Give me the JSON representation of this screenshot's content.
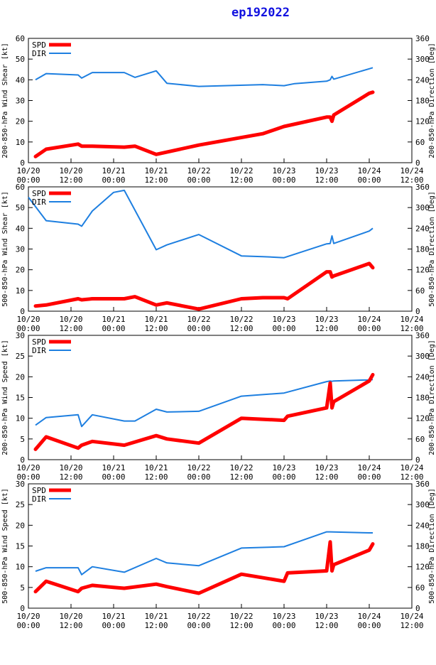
{
  "title": "ep192022",
  "colors": {
    "spd": "#ff0000",
    "dir": "#1e7fe0",
    "axis": "#000000",
    "title": "#1010e0"
  },
  "chart_data": [
    {
      "type": "line",
      "ylabel": "200-850-hPa Wind Shear [kt]",
      "ylabel2": "200-850-hPa Direction [Deg]",
      "ylim": [
        0,
        60
      ],
      "y2lim": [
        0,
        360
      ],
      "yticks": [
        "0",
        "10",
        "20",
        "30",
        "40",
        "50",
        "60"
      ],
      "y2ticks": [
        "0",
        "60",
        "120",
        "180",
        "240",
        "300",
        "360"
      ],
      "xticks": [
        [
          "10/20",
          "00:00"
        ],
        [
          "10/20",
          "12:00"
        ],
        [
          "10/21",
          "00:00"
        ],
        [
          "10/21",
          "12:00"
        ],
        [
          "10/22",
          "00:00"
        ],
        [
          "10/22",
          "12:00"
        ],
        [
          "10/23",
          "00:00"
        ],
        [
          "10/23",
          "12:00"
        ],
        [
          "10/24",
          "00:00"
        ],
        [
          "10/24",
          "12:00"
        ]
      ],
      "xlim": [
        0,
        108
      ],
      "legend": [
        "SPD",
        "DIR"
      ],
      "series": [
        {
          "name": "SPD",
          "x": [
            2,
            5,
            14,
            15,
            18,
            27,
            30,
            36,
            48,
            66,
            72,
            84,
            85,
            85.5,
            86,
            96,
            97
          ],
          "values": [
            3,
            6.5,
            9,
            8,
            8,
            7.5,
            8,
            4,
            8.5,
            14,
            17.5,
            22,
            22,
            20,
            23,
            33.5,
            34
          ]
        },
        {
          "name": "DIR",
          "x": [
            2,
            5,
            14,
            15,
            18,
            27,
            30,
            36,
            39,
            48,
            66,
            72,
            75,
            84,
            85,
            85.5,
            86,
            96,
            97
          ],
          "values": [
            240,
            258,
            254,
            245,
            261,
            261,
            247,
            266,
            230,
            221,
            226,
            223,
            229,
            236,
            240,
            250,
            242,
            272,
            275
          ]
        }
      ]
    },
    {
      "type": "line",
      "ylabel": "500-850-hPa Wind Shear [kt]",
      "ylabel2": "500-850-hPa Direction [Deg]",
      "ylim": [
        0,
        60
      ],
      "y2lim": [
        0,
        360
      ],
      "yticks": [
        "0",
        "10",
        "20",
        "30",
        "40",
        "50",
        "60"
      ],
      "y2ticks": [
        "0",
        "60",
        "120",
        "180",
        "240",
        "300",
        "360"
      ],
      "xticks": [
        [
          "10/20",
          "00:00"
        ],
        [
          "10/20",
          "12:00"
        ],
        [
          "10/21",
          "00:00"
        ],
        [
          "10/21",
          "12:00"
        ],
        [
          "10/22",
          "00:00"
        ],
        [
          "10/22",
          "12:00"
        ],
        [
          "10/23",
          "00:00"
        ],
        [
          "10/23",
          "12:00"
        ],
        [
          "10/24",
          "00:00"
        ],
        [
          "10/24",
          "12:00"
        ]
      ],
      "xlim": [
        0,
        108
      ],
      "legend": [
        "SPD",
        "DIR"
      ],
      "series": [
        {
          "name": "SPD",
          "x": [
            2,
            5,
            14,
            15,
            18,
            27,
            30,
            36,
            39,
            48,
            60,
            66,
            72,
            73,
            84,
            85,
            85.5,
            86,
            96,
            97
          ],
          "values": [
            2.5,
            3,
            6,
            5.5,
            6,
            6,
            7,
            3,
            4,
            1,
            6,
            6.5,
            6.5,
            6,
            19,
            19,
            16.5,
            17,
            23,
            21
          ]
        },
        {
          "name": "DIR",
          "x": [
            0,
            5,
            14,
            15,
            18,
            24,
            27,
            36,
            39,
            48,
            60,
            66,
            72,
            84,
            85,
            85.5,
            86,
            96,
            97
          ],
          "values": [
            330,
            262,
            252,
            246,
            290,
            344,
            350,
            178,
            192,
            222,
            160,
            158,
            155,
            195,
            196,
            218,
            196,
            232,
            240
          ]
        }
      ]
    },
    {
      "type": "line",
      "ylabel": "200-850-hPa Wind Speed [kt]",
      "ylabel2": "200-850-hPa Direction [Deg]",
      "ylim": [
        0,
        30
      ],
      "y2lim": [
        0,
        360
      ],
      "yticks": [
        "0",
        "5",
        "10",
        "15",
        "20",
        "25",
        "30"
      ],
      "y2ticks": [
        "0",
        "60",
        "120",
        "180",
        "240",
        "300",
        "360"
      ],
      "xticks": [
        [
          "10/20",
          "00:00"
        ],
        [
          "10/20",
          "12:00"
        ],
        [
          "10/21",
          "00:00"
        ],
        [
          "10/21",
          "12:00"
        ],
        [
          "10/22",
          "00:00"
        ],
        [
          "10/22",
          "12:00"
        ],
        [
          "10/23",
          "00:00"
        ],
        [
          "10/23",
          "12:00"
        ],
        [
          "10/24",
          "00:00"
        ],
        [
          "10/24",
          "12:00"
        ]
      ],
      "xlim": [
        0,
        108
      ],
      "legend": [
        "SPD",
        "DIR"
      ],
      "series": [
        {
          "name": "SPD",
          "x": [
            2,
            5,
            14,
            15,
            18,
            27,
            36,
            39,
            48,
            60,
            72,
            73,
            84,
            85,
            85.5,
            86,
            96,
            97
          ],
          "values": [
            2.5,
            5.5,
            2.8,
            3.5,
            4.4,
            3.5,
            5.8,
            5,
            4,
            10,
            9.5,
            10.5,
            12.5,
            18.5,
            12.5,
            14,
            19,
            20.5
          ]
        },
        {
          "name": "DIR",
          "x": [
            2,
            5,
            14,
            15,
            18,
            27,
            30,
            36,
            39,
            48,
            60,
            72,
            84,
            85,
            85.5,
            86,
            96,
            97
          ],
          "values": [
            100,
            122,
            130,
            96,
            130,
            112,
            112,
            146,
            138,
            140,
            184,
            193,
            226,
            228,
            227,
            228,
            231,
            232
          ]
        }
      ]
    },
    {
      "type": "line",
      "ylabel": "500-850-hPa Wind Speed [kt]",
      "ylabel2": "500-850-hPa Direction [Deg]",
      "ylim": [
        0,
        30
      ],
      "y2lim": [
        0,
        360
      ],
      "yticks": [
        "0",
        "5",
        "10",
        "15",
        "20",
        "25",
        "30"
      ],
      "y2ticks": [
        "0",
        "60",
        "120",
        "180",
        "240",
        "300",
        "360"
      ],
      "xticks": [
        [
          "10/20",
          "00:00"
        ],
        [
          "10/20",
          "12:00"
        ],
        [
          "10/21",
          "00:00"
        ],
        [
          "10/21",
          "12:00"
        ],
        [
          "10/22",
          "00:00"
        ],
        [
          "10/22",
          "12:00"
        ],
        [
          "10/23",
          "00:00"
        ],
        [
          "10/23",
          "12:00"
        ],
        [
          "10/24",
          "00:00"
        ],
        [
          "10/24",
          "12:00"
        ]
      ],
      "xlim": [
        0,
        108
      ],
      "legend": [
        "SPD",
        "DIR"
      ],
      "series": [
        {
          "name": "SPD",
          "x": [
            2,
            5,
            14,
            15,
            18,
            24,
            27,
            36,
            39,
            48,
            60,
            72,
            73,
            84,
            85,
            85.5,
            86,
            96,
            97
          ],
          "values": [
            4,
            6.5,
            4,
            4.8,
            5.5,
            5,
            4.8,
            5.8,
            5.2,
            3.6,
            8.2,
            6.5,
            8.5,
            9,
            16,
            9,
            10.5,
            14,
            15.5
          ]
        },
        {
          "name": "DIR",
          "x": [
            2,
            5,
            14,
            15,
            18,
            27,
            36,
            39,
            48,
            60,
            72,
            84,
            85,
            96,
            97
          ],
          "values": [
            107,
            117,
            117,
            97,
            120,
            104,
            144,
            131,
            123,
            174,
            178,
            221,
            221,
            218,
            218
          ]
        }
      ]
    }
  ]
}
